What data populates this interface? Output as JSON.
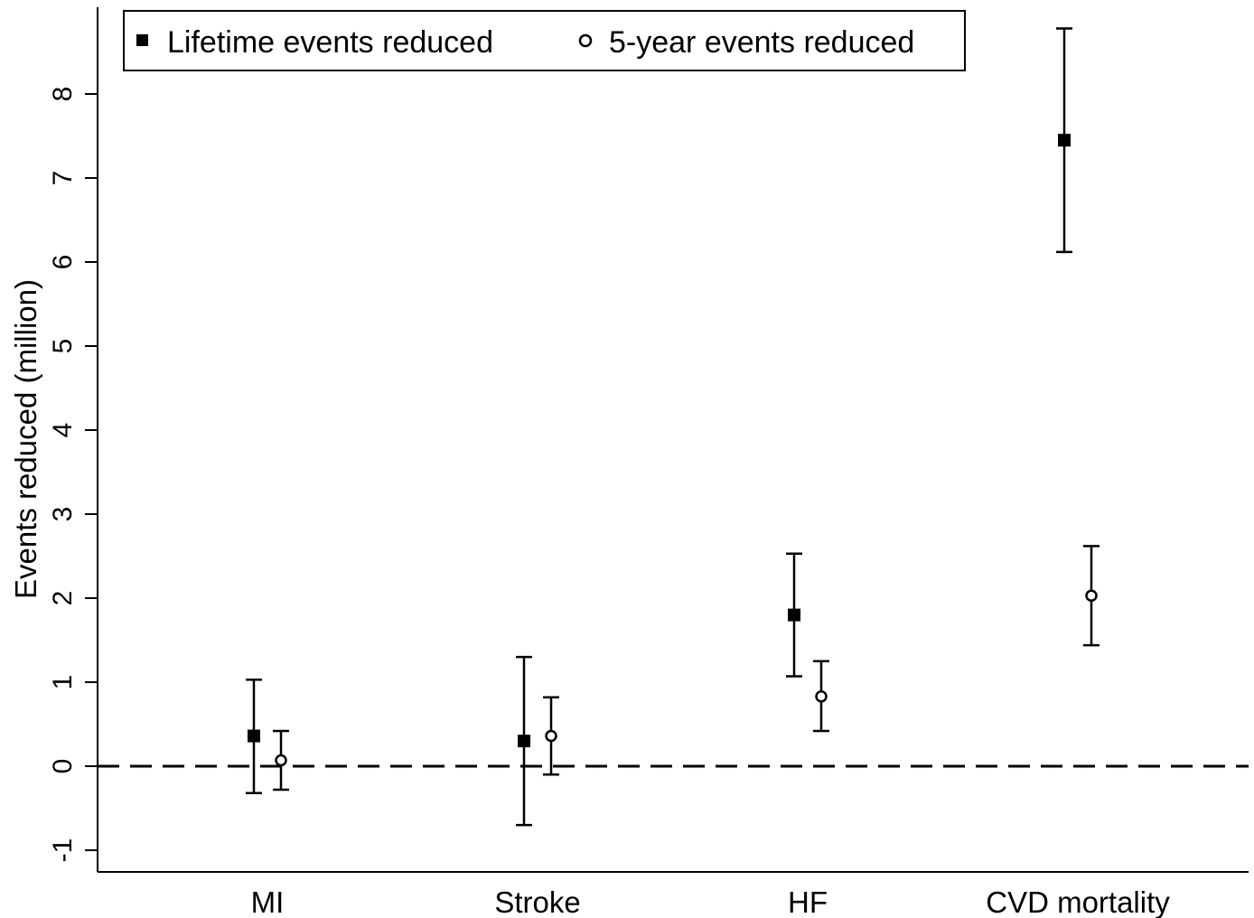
{
  "chart_data": {
    "type": "scatter",
    "ylabel": "Events reduced (million)",
    "categories": [
      "MI",
      "Stroke",
      "HF",
      "CVD mortality"
    ],
    "yticks": [
      "-1",
      "0",
      "1",
      "2",
      "3",
      "4",
      "5",
      "6",
      "7",
      "8"
    ],
    "ylim": [
      -1.2,
      9.0
    ],
    "reference_line": {
      "y": 0,
      "style": "dashed"
    },
    "legend": {
      "placement": "top-left",
      "entries": [
        "Lifetime events reduced",
        "5-year events reduced"
      ]
    },
    "series": [
      {
        "name": "Lifetime events reduced",
        "marker": "filled-square",
        "values": [
          0.36,
          0.3,
          1.8,
          7.45
        ],
        "lower": [
          -0.32,
          -0.7,
          1.07,
          6.12
        ],
        "upper": [
          1.03,
          1.3,
          2.53,
          8.78
        ]
      },
      {
        "name": "5-year events reduced",
        "marker": "hollow-circle",
        "values": [
          0.07,
          0.36,
          0.83,
          2.03
        ],
        "lower": [
          -0.28,
          -0.1,
          0.42,
          1.44
        ],
        "upper": [
          0.42,
          0.82,
          1.25,
          2.62
        ]
      }
    ]
  }
}
